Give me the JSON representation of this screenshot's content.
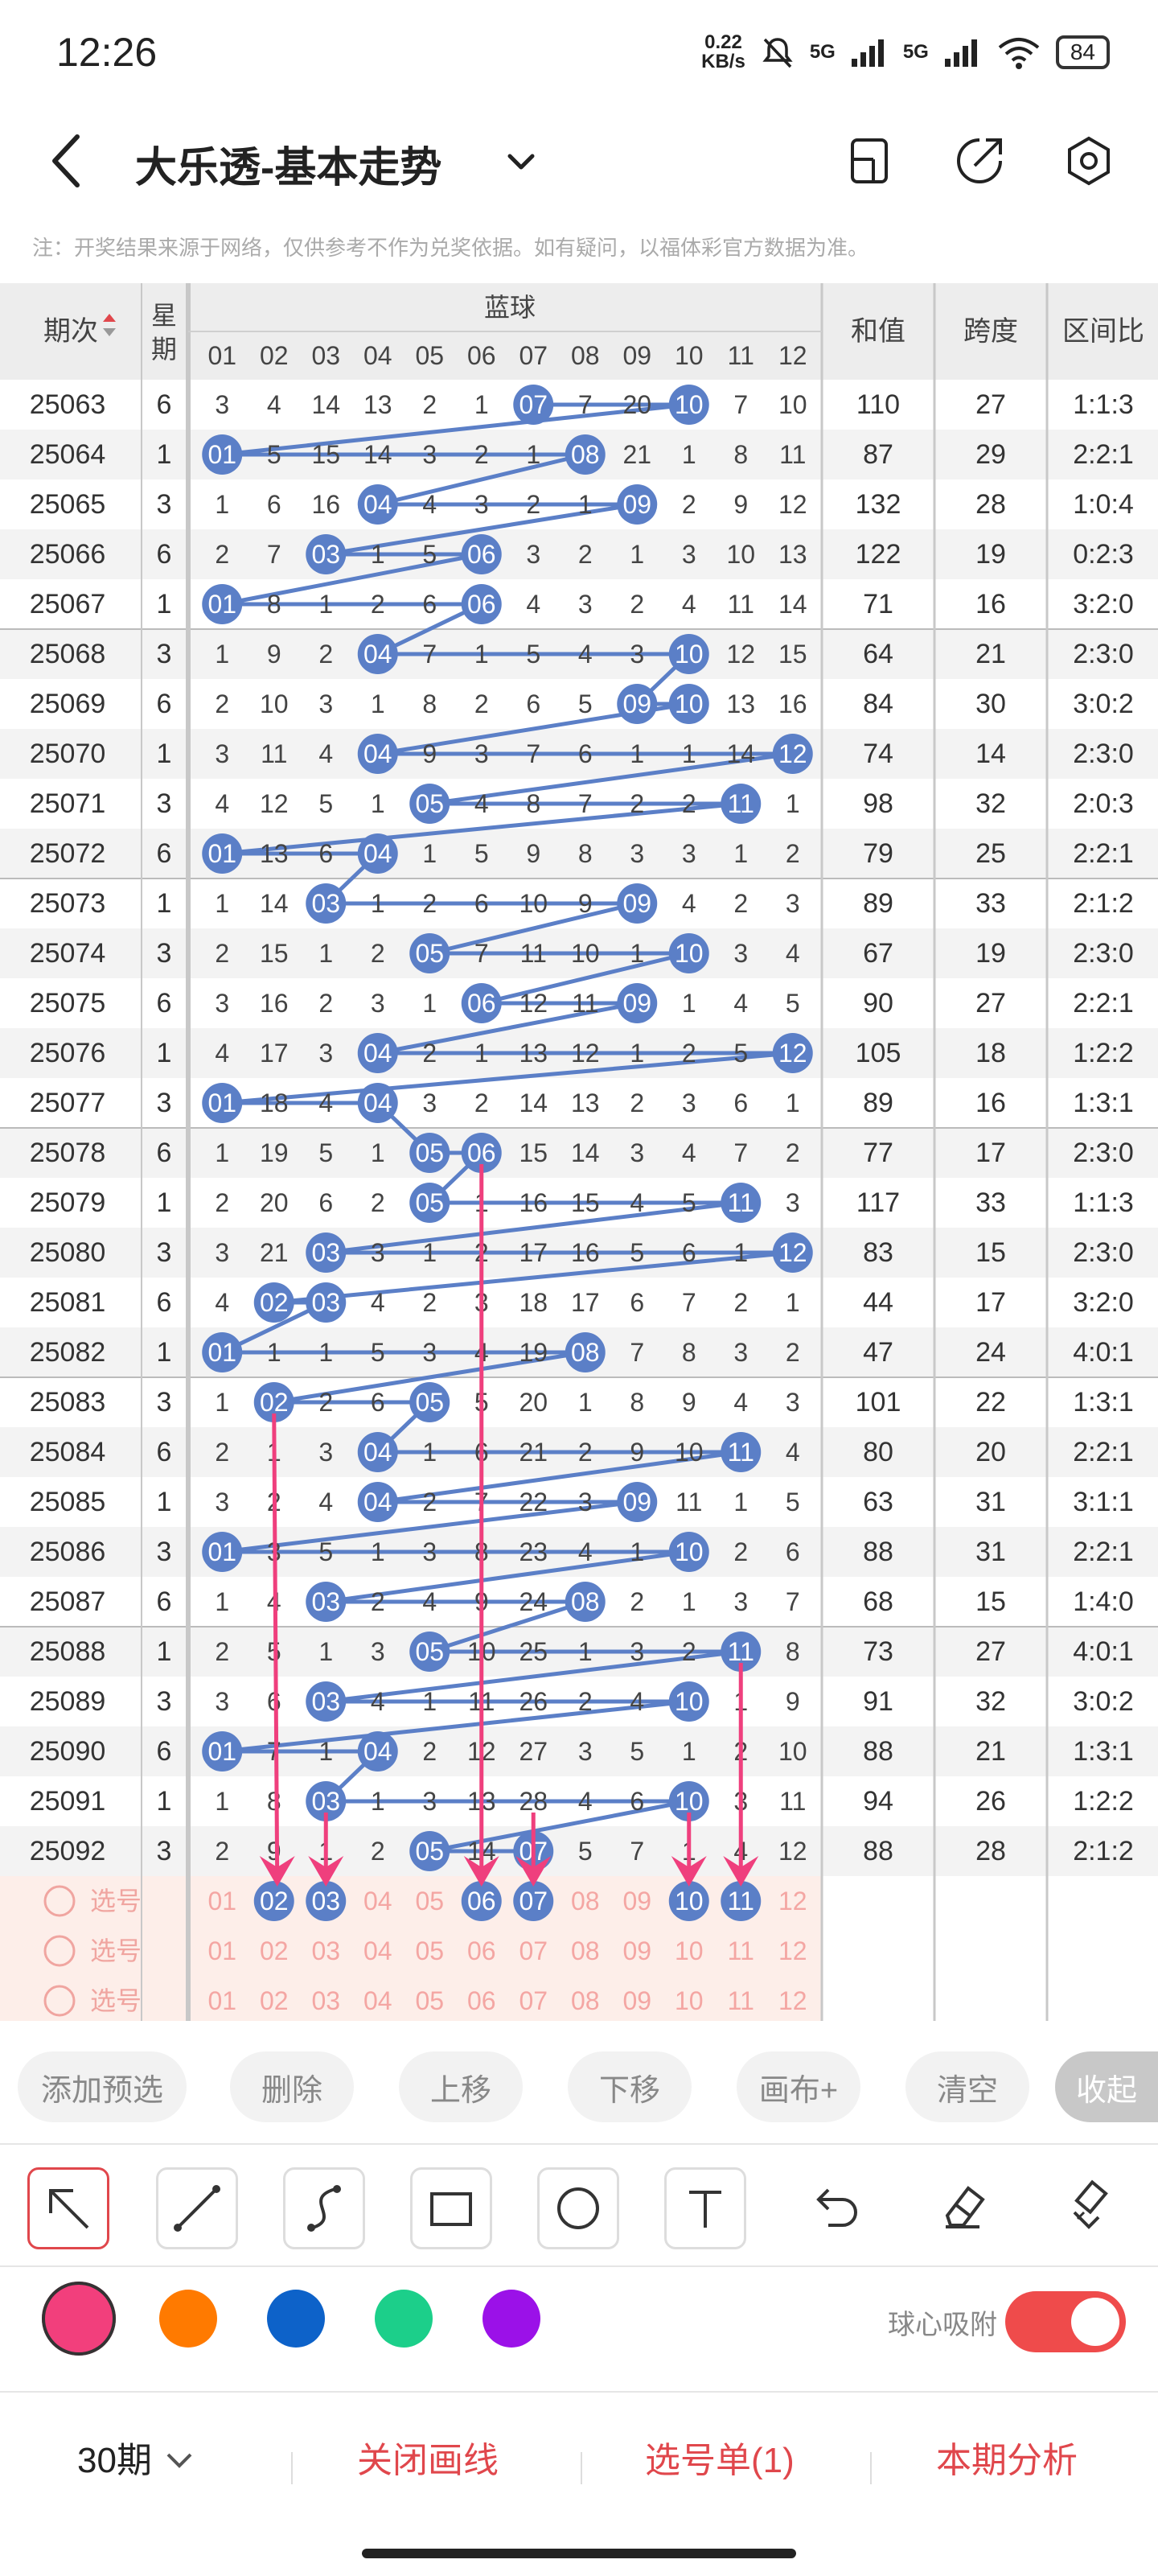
{
  "status": {
    "time": "12:26",
    "netspeed_value": "0.22",
    "netspeed_unit": "KB/s",
    "signal1": "5G",
    "signal2": "5G",
    "battery": "84"
  },
  "header": {
    "title": "大乐透-基本走势"
  },
  "notice": "注：开奖结果来源于网络，仅供参考不作为兑奖依据。如有疑问，以福体彩官方数据为准。",
  "table": {
    "col_period": "期次",
    "col_week": "星期",
    "col_blue": "蓝球",
    "col_sum": "和值",
    "col_span": "跨度",
    "col_ratio": "区间比",
    "blue_numbers": [
      "01",
      "02",
      "03",
      "04",
      "05",
      "06",
      "07",
      "08",
      "09",
      "10",
      "11",
      "12"
    ],
    "rows": [
      {
        "p": "25063",
        "w": "6",
        "c": [
          3,
          4,
          14,
          13,
          2,
          1,
          0,
          7,
          20,
          0,
          7,
          10
        ],
        "s": "110",
        "sp": "27",
        "r": "1:1:3"
      },
      {
        "p": "25064",
        "w": "1",
        "c": [
          0,
          5,
          15,
          14,
          3,
          2,
          1,
          0,
          21,
          1,
          8,
          11
        ],
        "s": "87",
        "sp": "29",
        "r": "2:2:1"
      },
      {
        "p": "25065",
        "w": "3",
        "c": [
          1,
          6,
          16,
          0,
          4,
          3,
          2,
          1,
          0,
          2,
          9,
          12
        ],
        "s": "132",
        "sp": "28",
        "r": "1:0:4"
      },
      {
        "p": "25066",
        "w": "6",
        "c": [
          2,
          7,
          0,
          1,
          5,
          0,
          3,
          2,
          1,
          3,
          10,
          13
        ],
        "s": "122",
        "sp": "19",
        "r": "0:2:3"
      },
      {
        "p": "25067",
        "w": "1",
        "c": [
          0,
          8,
          1,
          2,
          6,
          0,
          4,
          3,
          2,
          4,
          11,
          14
        ],
        "s": "71",
        "sp": "16",
        "r": "3:2:0"
      },
      {
        "p": "25068",
        "w": "3",
        "c": [
          1,
          9,
          2,
          0,
          7,
          1,
          5,
          4,
          3,
          0,
          12,
          15
        ],
        "s": "64",
        "sp": "21",
        "r": "2:3:0"
      },
      {
        "p": "25069",
        "w": "6",
        "c": [
          2,
          10,
          3,
          1,
          8,
          2,
          6,
          5,
          0,
          0,
          13,
          16
        ],
        "s": "84",
        "sp": "30",
        "r": "3:0:2"
      },
      {
        "p": "25070",
        "w": "1",
        "c": [
          3,
          11,
          4,
          0,
          9,
          3,
          7,
          6,
          1,
          1,
          14,
          0
        ],
        "s": "74",
        "sp": "14",
        "r": "2:3:0"
      },
      {
        "p": "25071",
        "w": "3",
        "c": [
          4,
          12,
          5,
          1,
          0,
          4,
          8,
          7,
          2,
          2,
          0,
          1
        ],
        "s": "98",
        "sp": "32",
        "r": "2:0:3"
      },
      {
        "p": "25072",
        "w": "6",
        "c": [
          0,
          13,
          6,
          0,
          1,
          5,
          9,
          8,
          3,
          3,
          1,
          2
        ],
        "s": "79",
        "sp": "25",
        "r": "2:2:1"
      },
      {
        "p": "25073",
        "w": "1",
        "c": [
          1,
          14,
          0,
          1,
          2,
          6,
          10,
          9,
          0,
          4,
          2,
          3
        ],
        "s": "89",
        "sp": "33",
        "r": "2:1:2"
      },
      {
        "p": "25074",
        "w": "3",
        "c": [
          2,
          15,
          1,
          2,
          0,
          7,
          11,
          10,
          1,
          0,
          3,
          4
        ],
        "s": "67",
        "sp": "19",
        "r": "2:3:0"
      },
      {
        "p": "25075",
        "w": "6",
        "c": [
          3,
          16,
          2,
          3,
          1,
          0,
          12,
          11,
          0,
          1,
          4,
          5
        ],
        "s": "90",
        "sp": "27",
        "r": "2:2:1"
      },
      {
        "p": "25076",
        "w": "1",
        "c": [
          4,
          17,
          3,
          0,
          2,
          1,
          13,
          12,
          1,
          2,
          5,
          0
        ],
        "s": "105",
        "sp": "18",
        "r": "1:2:2"
      },
      {
        "p": "25077",
        "w": "3",
        "c": [
          0,
          18,
          4,
          0,
          3,
          2,
          14,
          13,
          2,
          3,
          6,
          1
        ],
        "s": "89",
        "sp": "16",
        "r": "1:3:1"
      },
      {
        "p": "25078",
        "w": "6",
        "c": [
          1,
          19,
          5,
          1,
          0,
          0,
          15,
          14,
          3,
          4,
          7,
          2
        ],
        "s": "77",
        "sp": "17",
        "r": "2:3:0"
      },
      {
        "p": "25079",
        "w": "1",
        "c": [
          2,
          20,
          6,
          2,
          0,
          1,
          16,
          15,
          4,
          5,
          0,
          3
        ],
        "s": "117",
        "sp": "33",
        "r": "1:1:3"
      },
      {
        "p": "25080",
        "w": "3",
        "c": [
          3,
          21,
          0,
          3,
          1,
          2,
          17,
          16,
          5,
          6,
          1,
          0
        ],
        "s": "83",
        "sp": "15",
        "r": "2:3:0"
      },
      {
        "p": "25081",
        "w": "6",
        "c": [
          4,
          0,
          0,
          4,
          2,
          3,
          18,
          17,
          6,
          7,
          2,
          1
        ],
        "s": "44",
        "sp": "17",
        "r": "3:2:0"
      },
      {
        "p": "25082",
        "w": "1",
        "c": [
          0,
          1,
          1,
          5,
          3,
          4,
          19,
          0,
          7,
          8,
          3,
          2
        ],
        "s": "47",
        "sp": "24",
        "r": "4:0:1"
      },
      {
        "p": "25083",
        "w": "3",
        "c": [
          1,
          0,
          2,
          6,
          0,
          5,
          20,
          1,
          8,
          9,
          4,
          3
        ],
        "s": "101",
        "sp": "22",
        "r": "1:3:1"
      },
      {
        "p": "25084",
        "w": "6",
        "c": [
          2,
          1,
          3,
          0,
          1,
          6,
          21,
          2,
          9,
          10,
          0,
          4
        ],
        "s": "80",
        "sp": "20",
        "r": "2:2:1"
      },
      {
        "p": "25085",
        "w": "1",
        "c": [
          3,
          2,
          4,
          0,
          2,
          7,
          22,
          3,
          0,
          11,
          1,
          5
        ],
        "s": "63",
        "sp": "31",
        "r": "3:1:1"
      },
      {
        "p": "25086",
        "w": "3",
        "c": [
          0,
          3,
          5,
          1,
          3,
          8,
          23,
          4,
          1,
          0,
          2,
          6
        ],
        "s": "88",
        "sp": "31",
        "r": "2:2:1"
      },
      {
        "p": "25087",
        "w": "6",
        "c": [
          1,
          4,
          0,
          2,
          4,
          9,
          24,
          0,
          2,
          1,
          3,
          7
        ],
        "s": "68",
        "sp": "15",
        "r": "1:4:0"
      },
      {
        "p": "25088",
        "w": "1",
        "c": [
          2,
          5,
          1,
          3,
          0,
          10,
          25,
          1,
          3,
          2,
          0,
          8
        ],
        "s": "73",
        "sp": "27",
        "r": "4:0:1"
      },
      {
        "p": "25089",
        "w": "3",
        "c": [
          3,
          6,
          0,
          4,
          1,
          11,
          26,
          2,
          4,
          0,
          1,
          9
        ],
        "s": "91",
        "sp": "32",
        "r": "3:0:2"
      },
      {
        "p": "25090",
        "w": "6",
        "c": [
          0,
          7,
          1,
          0,
          2,
          12,
          27,
          3,
          5,
          1,
          2,
          10
        ],
        "s": "88",
        "sp": "21",
        "r": "1:3:1"
      },
      {
        "p": "25091",
        "w": "1",
        "c": [
          1,
          8,
          0,
          1,
          3,
          13,
          28,
          4,
          6,
          0,
          3,
          11
        ],
        "s": "94",
        "sp": "26",
        "r": "1:2:2"
      },
      {
        "p": "25092",
        "w": "3",
        "c": [
          2,
          9,
          1,
          2,
          0,
          14,
          0,
          5,
          7,
          1,
          4,
          12
        ],
        "s": "88",
        "sp": "28",
        "r": "2:1:2"
      }
    ],
    "select_label": "选号",
    "selections": [
      [
        2,
        3,
        6,
        7,
        10,
        11
      ],
      [],
      []
    ]
  },
  "actions": [
    "添加预选",
    "删除",
    "上移",
    "下移",
    "画布+",
    "清空",
    "收起"
  ],
  "tools": [
    "arrow-tool",
    "line-tool",
    "curve-tool",
    "rectangle-tool",
    "circle-tool",
    "text-tool",
    "undo-tool",
    "eraser-tool",
    "clear-tool"
  ],
  "colors": [
    "#f23f7c",
    "#ff7a00",
    "#0d62c9",
    "#1ccf8a",
    "#9b11e8"
  ],
  "snap_label": "球心吸附",
  "bottom": {
    "periods": "30期",
    "close_lines": "关闭画线",
    "selection_list": "选号单(1)",
    "analysis": "本期分析"
  }
}
